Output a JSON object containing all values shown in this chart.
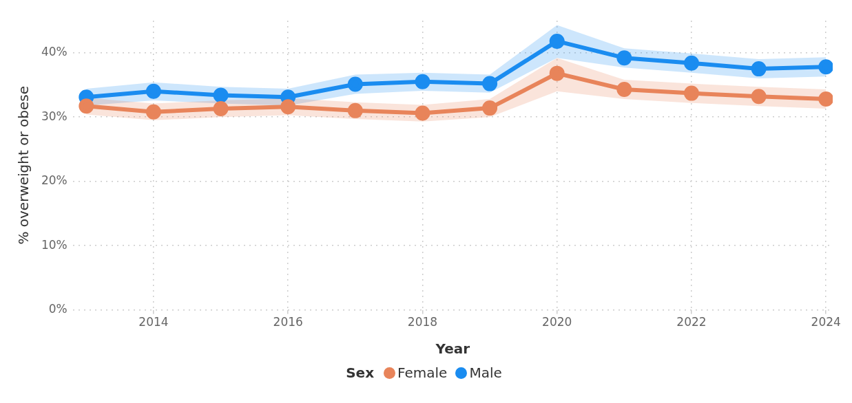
{
  "chart_data": {
    "type": "line",
    "xlabel": "Year",
    "ylabel": "% overweight or obese",
    "legend_title": "Sex",
    "legend": "bottom",
    "grid": true,
    "marker": "circle",
    "line_style": "solid",
    "x": [
      2013,
      2014,
      2015,
      2016,
      2017,
      2018,
      2019,
      2020,
      2021,
      2022,
      2023,
      2024
    ],
    "xlim": [
      2012.8,
      2024.1
    ],
    "xticks": [
      2014,
      2016,
      2018,
      2020,
      2022,
      2024
    ],
    "ylim": [
      0,
      45
    ],
    "yticks": [
      {
        "value": 0,
        "label": "0%"
      },
      {
        "value": 10,
        "label": "10%"
      },
      {
        "value": 20,
        "label": "20%"
      },
      {
        "value": 30,
        "label": "30%"
      },
      {
        "value": 40,
        "label": "40%"
      }
    ],
    "series": [
      {
        "name": "Female",
        "color": "#e8845a",
        "values": [
          31.7,
          30.8,
          31.3,
          31.6,
          31.0,
          30.6,
          31.4,
          36.8,
          34.3,
          33.7,
          33.2,
          32.8
        ],
        "lower": [
          30.4,
          29.5,
          30.0,
          30.3,
          29.7,
          29.3,
          30.0,
          34.0,
          32.8,
          32.2,
          31.7,
          31.3
        ],
        "upper": [
          33.0,
          32.1,
          32.6,
          32.9,
          32.3,
          31.9,
          32.8,
          39.2,
          35.8,
          35.2,
          34.7,
          34.3
        ]
      },
      {
        "name": "Male",
        "color": "#1a8cf0",
        "values": [
          33.1,
          34.0,
          33.4,
          33.1,
          35.1,
          35.5,
          35.2,
          41.8,
          39.2,
          38.4,
          37.5,
          37.8
        ],
        "lower": [
          31.8,
          32.6,
          32.1,
          31.8,
          33.6,
          34.1,
          33.8,
          39.2,
          37.7,
          36.9,
          36.0,
          36.3
        ],
        "upper": [
          34.4,
          35.4,
          34.7,
          34.4,
          36.6,
          36.9,
          36.6,
          44.3,
          40.7,
          39.9,
          39.0,
          39.3
        ]
      }
    ]
  }
}
